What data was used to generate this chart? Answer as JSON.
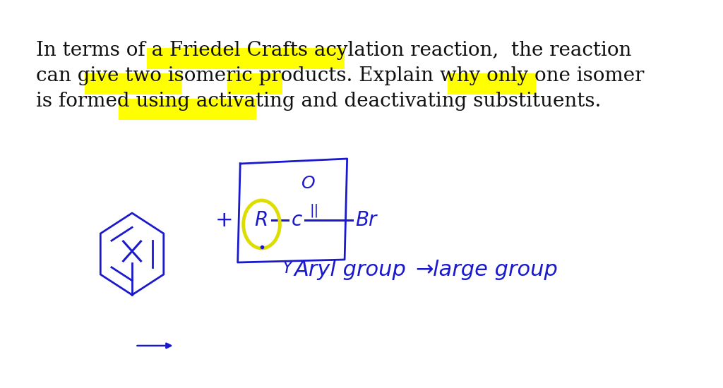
{
  "bg_color": "#ffffff",
  "text_color_black": "#111111",
  "text_color_blue": "#1a1acc",
  "highlight_yellow": "#ffff00",
  "line1": "In terms of a Friedel Crafts acylation reaction,  the reaction",
  "line2": "can give two isomeric products. Explain why only one isomer",
  "line3": "is formed using activating and deactivating substituents.",
  "figsize": [
    10.24,
    5.5
  ],
  "dpi": 100
}
